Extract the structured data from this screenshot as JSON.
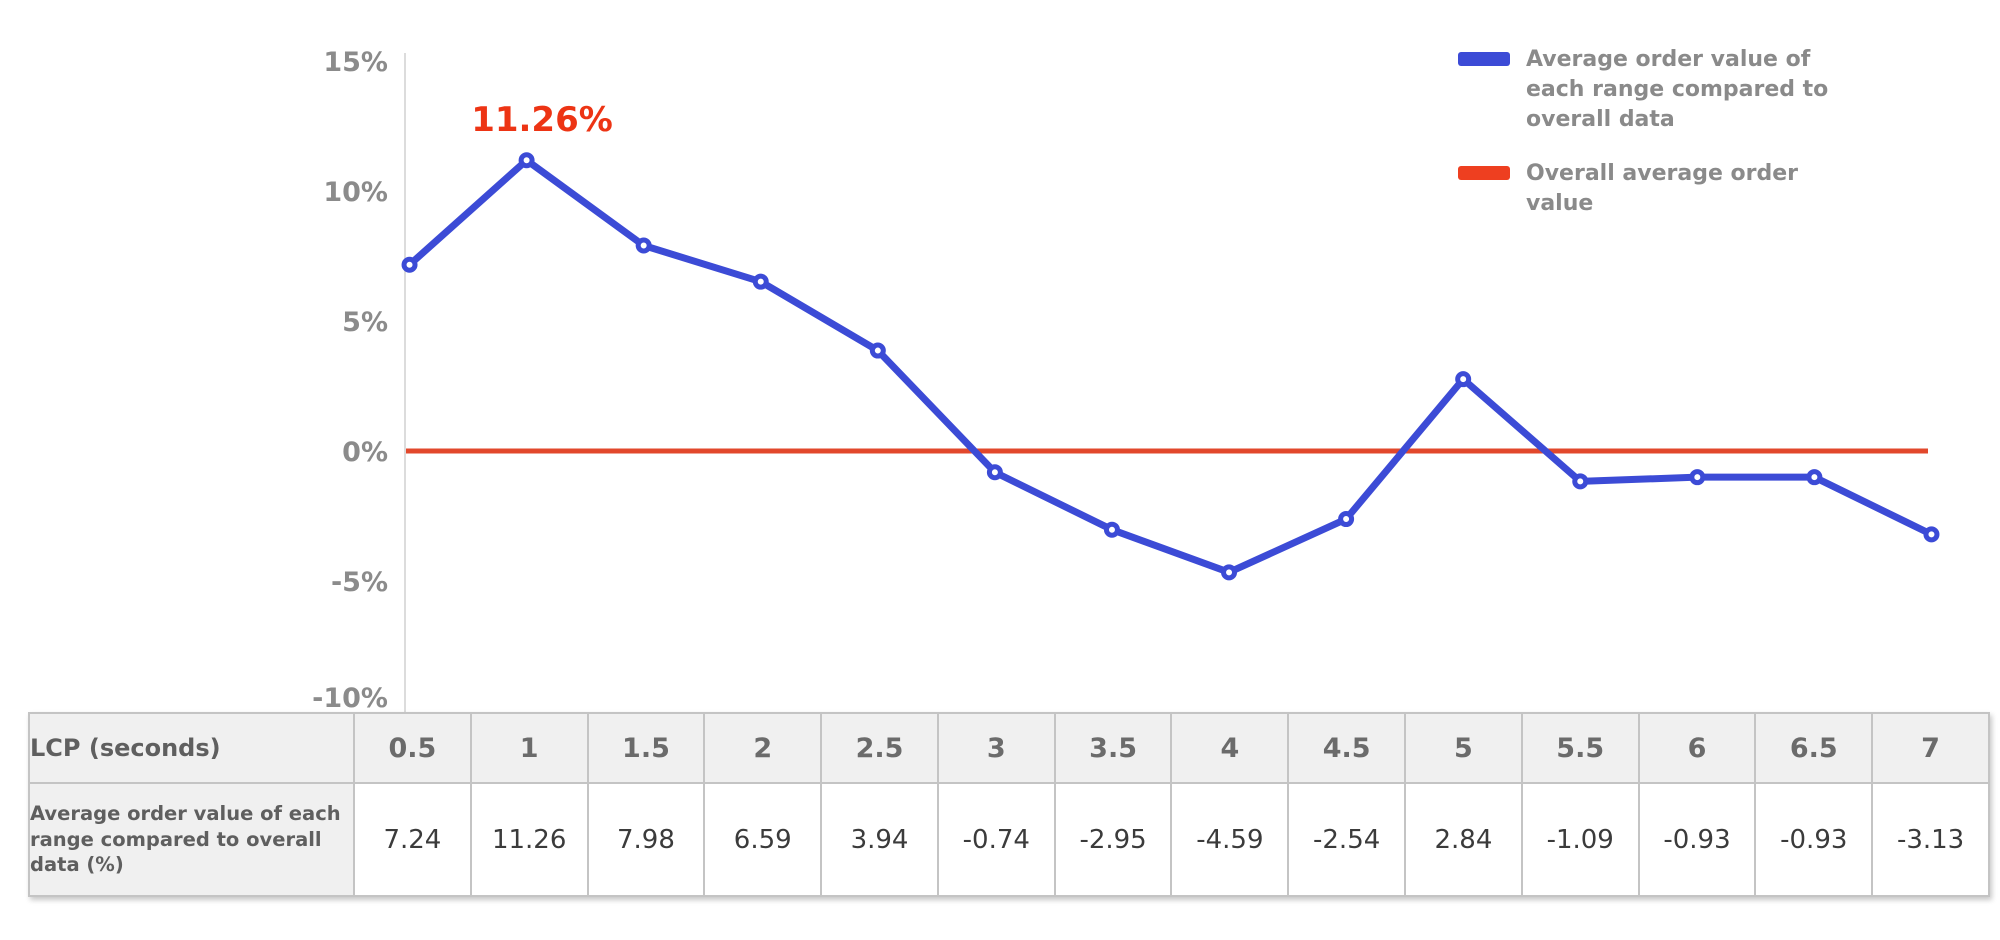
{
  "chart_data": {
    "type": "line",
    "x": [
      0.5,
      1,
      1.5,
      2,
      2.5,
      3,
      3.5,
      4,
      4.5,
      5,
      5.5,
      6,
      6.5,
      7
    ],
    "series": [
      {
        "name": "Average order value of each range compared to overall data",
        "color": "#3c4bd6",
        "marker": "open-circle",
        "values": [
          7.24,
          11.26,
          7.98,
          6.59,
          3.94,
          -0.74,
          -2.95,
          -4.59,
          -2.54,
          2.84,
          -1.09,
          -0.93,
          -0.93,
          -3.13
        ]
      },
      {
        "name": "Overall average order value",
        "color": "#e2482c",
        "type": "reference-line",
        "value": 0
      }
    ],
    "annotation": {
      "text": "11.26%",
      "at_x": 1,
      "at_y": 11.26,
      "color": "#ed3414"
    },
    "xlabel": "LCP (seconds)",
    "ylabel": "",
    "ylim": [
      -10,
      15
    ],
    "y_ticks": [
      {
        "value": 15,
        "label": "15%"
      },
      {
        "value": 10,
        "label": "10%"
      },
      {
        "value": 5,
        "label": "5%"
      },
      {
        "value": 0,
        "label": "0%"
      },
      {
        "value": -5,
        "label": "-5%"
      },
      {
        "value": -10,
        "label": "-10%"
      }
    ],
    "grid": false,
    "legend_position": "top-right"
  },
  "legend": {
    "items": [
      {
        "label": "Average order value of each range compared to overall data",
        "color": "#3c4bd6"
      },
      {
        "label": "Overall average order value",
        "color": "#ee3f20"
      }
    ]
  },
  "table": {
    "header_label": "LCP (seconds)",
    "columns": [
      "0.5",
      "1",
      "1.5",
      "2",
      "2.5",
      "3",
      "3.5",
      "4",
      "4.5",
      "5",
      "5.5",
      "6",
      "6.5",
      "7"
    ],
    "row_label": "Average order value of each range compared to overall data (%)",
    "values": [
      "7.24",
      "11.26",
      "7.98",
      "6.59",
      "3.94",
      "-0.74",
      "-2.95",
      "-4.59",
      "-2.54",
      "2.84",
      "-1.09",
      "-0.93",
      "-0.93",
      "-3.13"
    ]
  },
  "colors": {
    "series_blue": "#3c4bd6",
    "reference_red": "#e2482c",
    "annotation_red": "#ed3414",
    "axis_gray": "#8b8b8b",
    "axis_line": "#dcdcdc",
    "table_border": "#c4c4c4",
    "table_header_bg": "#f0f0f0"
  }
}
